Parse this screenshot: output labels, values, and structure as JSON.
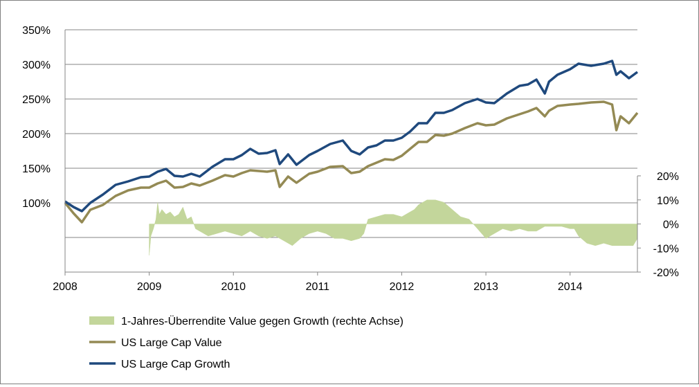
{
  "chart_data": {
    "type": "line",
    "title": "",
    "x_ticks": [
      "2008",
      "2009",
      "2010",
      "2011",
      "2012",
      "2013",
      "2014"
    ],
    "x_range": [
      2008.0,
      2014.8
    ],
    "y_left": {
      "ticks": [
        "100%",
        "150%",
        "200%",
        "250%",
        "300%",
        "350%"
      ],
      "tick_values": [
        100,
        150,
        200,
        250,
        300,
        350
      ],
      "range": [
        0,
        350
      ],
      "grid": true
    },
    "y_right": {
      "ticks": [
        "20%",
        "10%",
        "0%",
        "-10%",
        "-20%"
      ],
      "tick_values": [
        20,
        10,
        0,
        -10,
        -20
      ],
      "range": [
        -20,
        20
      ]
    },
    "legend": {
      "position": "bottom",
      "entries": [
        {
          "label": "1-Jahres-Überrendite Value gegen Growth (rechte Achse)",
          "color": "#c3d69b",
          "kind": "area"
        },
        {
          "label": "US Large Cap Value",
          "color": "#948a54",
          "kind": "line"
        },
        {
          "label": "US Large Cap Growth",
          "color": "#1f497d",
          "kind": "line"
        }
      ]
    },
    "series": [
      {
        "name": "US Large Cap Growth",
        "axis": "left",
        "color": "#1f497d",
        "x": [
          2008.0,
          2008.1,
          2008.2,
          2008.3,
          2008.45,
          2008.6,
          2008.75,
          2008.9,
          2009.0,
          2009.1,
          2009.2,
          2009.3,
          2009.4,
          2009.5,
          2009.6,
          2009.75,
          2009.9,
          2010.0,
          2010.1,
          2010.2,
          2010.3,
          2010.4,
          2010.5,
          2010.55,
          2010.65,
          2010.75,
          2010.9,
          2011.0,
          2011.15,
          2011.3,
          2011.4,
          2011.5,
          2011.6,
          2011.7,
          2011.8,
          2011.9,
          2012.0,
          2012.1,
          2012.2,
          2012.3,
          2012.4,
          2012.5,
          2012.6,
          2012.75,
          2012.9,
          2013.0,
          2013.1,
          2013.25,
          2013.4,
          2013.5,
          2013.6,
          2013.7,
          2013.75,
          2013.85,
          2014.0,
          2014.1,
          2014.25,
          2014.4,
          2014.5,
          2014.55,
          2014.6,
          2014.7,
          2014.8
        ],
        "values": [
          102,
          94,
          88,
          100,
          112,
          126,
          131,
          137,
          138,
          145,
          149,
          139,
          138,
          142,
          138,
          152,
          163,
          163,
          169,
          178,
          171,
          172,
          176,
          156,
          170,
          155,
          169,
          175,
          185,
          190,
          175,
          170,
          180,
          183,
          190,
          190,
          194,
          203,
          215,
          215,
          230,
          230,
          234,
          244,
          250,
          245,
          244,
          258,
          269,
          271,
          278,
          258,
          275,
          285,
          293,
          301,
          298,
          301,
          305,
          285,
          290,
          280,
          289
        ]
      },
      {
        "name": "US Large Cap Value",
        "axis": "left",
        "color": "#948a54",
        "x": [
          2008.0,
          2008.1,
          2008.2,
          2008.3,
          2008.45,
          2008.6,
          2008.75,
          2008.9,
          2009.0,
          2009.1,
          2009.2,
          2009.3,
          2009.4,
          2009.5,
          2009.6,
          2009.75,
          2009.9,
          2010.0,
          2010.1,
          2010.2,
          2010.3,
          2010.4,
          2010.5,
          2010.55,
          2010.65,
          2010.75,
          2010.9,
          2011.0,
          2011.15,
          2011.3,
          2011.4,
          2011.5,
          2011.6,
          2011.7,
          2011.8,
          2011.9,
          2012.0,
          2012.1,
          2012.2,
          2012.3,
          2012.4,
          2012.5,
          2012.6,
          2012.75,
          2012.9,
          2013.0,
          2013.1,
          2013.25,
          2013.4,
          2013.5,
          2013.6,
          2013.7,
          2013.75,
          2013.85,
          2014.0,
          2014.1,
          2014.25,
          2014.4,
          2014.5,
          2014.55,
          2014.6,
          2014.7,
          2014.8
        ],
        "values": [
          100,
          85,
          72,
          90,
          97,
          110,
          118,
          122,
          122,
          128,
          132,
          122,
          123,
          128,
          125,
          132,
          140,
          138,
          143,
          147,
          146,
          145,
          147,
          123,
          138,
          129,
          142,
          145,
          152,
          153,
          143,
          145,
          153,
          158,
          163,
          162,
          168,
          178,
          188,
          188,
          198,
          197,
          200,
          208,
          215,
          212,
          213,
          222,
          228,
          232,
          237,
          225,
          233,
          240,
          242,
          243,
          245,
          246,
          242,
          205,
          225,
          215,
          230
        ]
      },
      {
        "name": "1-Jahres-Überrendite Value gegen Growth (rechte Achse)",
        "axis": "right",
        "color": "#c3d69b",
        "type": "area",
        "x": [
          2009.0,
          2009.02,
          2009.05,
          2009.08,
          2009.1,
          2009.12,
          2009.15,
          2009.2,
          2009.25,
          2009.3,
          2009.35,
          2009.4,
          2009.45,
          2009.5,
          2009.55,
          2009.6,
          2009.7,
          2009.8,
          2009.9,
          2010.0,
          2010.1,
          2010.2,
          2010.3,
          2010.4,
          2010.5,
          2010.6,
          2010.7,
          2010.8,
          2010.9,
          2011.0,
          2011.1,
          2011.2,
          2011.3,
          2011.4,
          2011.5,
          2011.55,
          2011.6,
          2011.7,
          2011.8,
          2011.9,
          2012.0,
          2012.1,
          2012.15,
          2012.2,
          2012.3,
          2012.4,
          2012.5,
          2012.6,
          2012.7,
          2012.8,
          2012.85,
          2012.9,
          2013.0,
          2013.1,
          2013.2,
          2013.3,
          2013.4,
          2013.5,
          2013.6,
          2013.7,
          2013.8,
          2013.9,
          2014.0,
          2014.05,
          2014.1,
          2014.2,
          2014.3,
          2014.4,
          2014.5,
          2014.6,
          2014.7,
          2014.75,
          2014.8
        ],
        "values": [
          -13,
          -5,
          -2,
          2,
          9,
          4,
          6,
          4,
          5,
          3,
          4,
          7,
          2,
          3,
          -2,
          -3,
          -5,
          -4,
          -3,
          -4,
          -5,
          -3,
          -5,
          -6,
          -5,
          -7,
          -9,
          -6,
          -4,
          -3,
          -4,
          -6,
          -6,
          -7,
          -6,
          -4,
          2,
          3,
          4,
          4,
          3,
          5,
          6,
          8,
          10,
          10,
          9,
          6,
          3,
          2,
          0,
          -2,
          -6,
          -4,
          -2,
          -3,
          -2,
          -3,
          -3,
          -1,
          -1,
          -1,
          -2,
          -2,
          -5,
          -8,
          -9,
          -8,
          -9,
          -9,
          -9,
          -9,
          -6
        ]
      }
    ]
  }
}
